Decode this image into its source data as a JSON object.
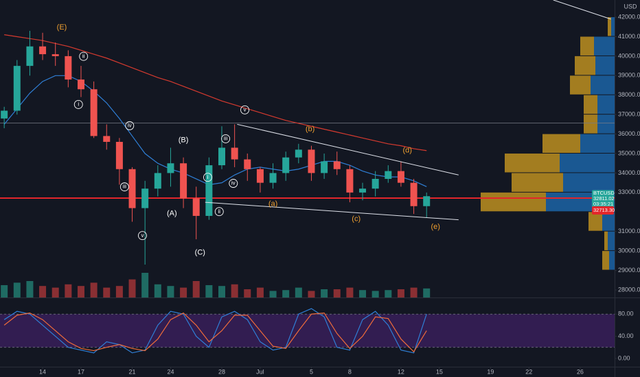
{
  "chart_data": [
    {
      "type": "candlestick",
      "currency": "USD",
      "symbol": "BTCUSD",
      "last_price": {
        "value": 32811.02,
        "label": "32811.02"
      },
      "countdown": "03:35:21",
      "ref_price": {
        "value": 32713.3,
        "label": "32713.30"
      },
      "h_level": 36570,
      "x": [
        11,
        12,
        13,
        14,
        15,
        16,
        17,
        18,
        19,
        20,
        21,
        22,
        23,
        24,
        25,
        26,
        27,
        28,
        29,
        30,
        31,
        32,
        33,
        34,
        35,
        36,
        37,
        38,
        39,
        40,
        41,
        42,
        43,
        44
      ],
      "open": [
        36800,
        37200,
        39500,
        40500,
        40100,
        40000,
        38800,
        38300,
        35900,
        35600,
        34200,
        32200,
        33200,
        34000,
        34500,
        32700,
        31800,
        34400,
        35300,
        34700,
        34200,
        33500,
        34000,
        34800,
        35200,
        34000,
        34600,
        34200,
        33000,
        33200,
        33700,
        34100,
        33500,
        32300
      ],
      "high": [
        37400,
        39800,
        41300,
        41200,
        40700,
        40300,
        39500,
        38700,
        36500,
        35800,
        34300,
        33600,
        34400,
        35300,
        34800,
        33300,
        34800,
        36400,
        36500,
        35000,
        34300,
        34500,
        35100,
        35500,
        35400,
        35000,
        35100,
        34400,
        33500,
        34100,
        34400,
        34600,
        33700,
        33000
      ],
      "low": [
        36300,
        37000,
        39000,
        39800,
        39500,
        38400,
        37900,
        35800,
        35200,
        33400,
        31500,
        29300,
        32800,
        33300,
        32200,
        30600,
        31600,
        34200,
        34300,
        33600,
        33000,
        33200,
        33600,
        34500,
        33600,
        33700,
        33900,
        32500,
        32600,
        32800,
        33500,
        33300,
        31900,
        31700
      ],
      "close": [
        37200,
        39500,
        40500,
        40100,
        40000,
        38800,
        38300,
        35900,
        35600,
        34200,
        32200,
        33200,
        34000,
        34500,
        32700,
        31800,
        34400,
        35300,
        34700,
        34200,
        33500,
        34000,
        34800,
        35200,
        34000,
        34600,
        34200,
        33000,
        33200,
        33700,
        34100,
        33500,
        32300,
        32811.02
      ],
      "volume": [
        15,
        18,
        20,
        14,
        12,
        16,
        14,
        18,
        12,
        14,
        22,
        30,
        16,
        14,
        12,
        20,
        15,
        14,
        16,
        10,
        12,
        8,
        9,
        12,
        8,
        10,
        10,
        12,
        9,
        8,
        9,
        10,
        12,
        11
      ],
      "up_color": "#26a69a",
      "down_color": "#ef5350",
      "overlays": [
        {
          "color": "#d63a2f",
          "values": [
            41100,
            41000,
            40900,
            40800,
            40650,
            40500,
            40300,
            40100,
            39900,
            39650,
            39400,
            39150,
            38900,
            38700,
            38450,
            38200,
            37950,
            37700,
            37500,
            37300,
            37100,
            36900,
            36700,
            36550,
            36400,
            36250,
            36100,
            35950,
            35800,
            35650,
            35500,
            35400,
            35250,
            35150
          ]
        },
        {
          "color": "#2f7fd6",
          "values": [
            36500,
            37300,
            38100,
            38700,
            39000,
            39000,
            38700,
            38200,
            37600,
            36800,
            35900,
            35000,
            34500,
            34200,
            34000,
            33700,
            33400,
            33500,
            33900,
            34200,
            34300,
            34200,
            34100,
            34200,
            34400,
            34600,
            34600,
            34400,
            34100,
            33900,
            33800,
            33800,
            33600,
            33300
          ]
        }
      ],
      "trendlines": [
        {
          "x": [
            29.2,
            46.5
          ],
          "y": [
            36500,
            33900
          ]
        },
        {
          "x": [
            26.7,
            46.5
          ],
          "y": [
            32500,
            31600
          ]
        },
        {
          "x": [
            53.9,
            58.4
          ],
          "y": [
            42882,
            41900
          ]
        }
      ],
      "volume_profile": {
        "bins": [
          29000,
          30000,
          31000,
          32000,
          33000,
          34000,
          35000,
          36000,
          37000,
          38000,
          39000,
          40000,
          41000,
          42000
        ],
        "up": [
          10,
          5,
          20,
          95,
          75,
          80,
          55,
          20,
          20,
          30,
          30,
          20,
          5
        ],
        "down": [
          8,
          10,
          18,
          100,
          75,
          80,
          50,
          25,
          25,
          35,
          28,
          30,
          5
        ]
      },
      "annotations": [
        {
          "text": "(E)",
          "x": 15.5,
          "y": 41470,
          "color": "#f0a030",
          "circled": false
        },
        {
          "text": "ii",
          "x": 17.2,
          "y": 39990,
          "color": "#ffffff",
          "circled": true
        },
        {
          "text": "i",
          "x": 16.8,
          "y": 37520,
          "color": "#ffffff",
          "circled": true
        },
        {
          "text": "iv",
          "x": 20.8,
          "y": 36430,
          "color": "#ffffff",
          "circled": true
        },
        {
          "text": "iii",
          "x": 20.4,
          "y": 33290,
          "color": "#ffffff",
          "circled": true
        },
        {
          "text": "v",
          "x": 21.8,
          "y": 30790,
          "color": "#ffffff",
          "circled": true
        },
        {
          "text": "(B)",
          "x": 25.0,
          "y": 35690,
          "color": "#ffffff",
          "circled": false
        },
        {
          "text": "(A)",
          "x": 24.1,
          "y": 31920,
          "color": "#ffffff",
          "circled": false
        },
        {
          "text": "(C)",
          "x": 26.3,
          "y": 29910,
          "color": "#ffffff",
          "circled": false
        },
        {
          "text": "i",
          "x": 26.9,
          "y": 33780,
          "color": "#ffffff",
          "circled": true
        },
        {
          "text": "iv",
          "x": 28.9,
          "y": 33470,
          "color": "#ffffff",
          "circled": true
        },
        {
          "text": "iii",
          "x": 28.3,
          "y": 35760,
          "color": "#ffffff",
          "circled": true
        },
        {
          "text": "ii",
          "x": 27.8,
          "y": 32020,
          "color": "#ffffff",
          "circled": true
        },
        {
          "text": "v",
          "x": 29.8,
          "y": 37240,
          "color": "#ffffff",
          "circled": true
        },
        {
          "text": "(a)",
          "x": 32.0,
          "y": 32410,
          "color": "#f0a030",
          "circled": false
        },
        {
          "text": "(b)",
          "x": 34.9,
          "y": 36250,
          "color": "#f0a030",
          "circled": false
        },
        {
          "text": "(c)",
          "x": 38.5,
          "y": 31630,
          "color": "#f0a030",
          "circled": false
        },
        {
          "text": "(d)",
          "x": 42.5,
          "y": 35160,
          "color": "#f0a030",
          "circled": false
        },
        {
          "text": "(e)",
          "x": 44.7,
          "y": 31240,
          "color": "#f0a030",
          "circled": false
        }
      ],
      "xlim": [
        10.67,
        58.69
      ],
      "xticks": [
        {
          "value": 14,
          "label": "14"
        },
        {
          "value": 17,
          "label": "17"
        },
        {
          "value": 21,
          "label": "21"
        },
        {
          "value": 24,
          "label": "24"
        },
        {
          "value": 28,
          "label": "28"
        },
        {
          "value": 31,
          "label": "Jul"
        },
        {
          "value": 35,
          "label": "5"
        },
        {
          "value": 38,
          "label": "8"
        },
        {
          "value": 42,
          "label": "12"
        },
        {
          "value": 45,
          "label": "15"
        },
        {
          "value": 49,
          "label": "19"
        },
        {
          "value": 52,
          "label": "22"
        },
        {
          "value": 56,
          "label": "26"
        }
      ],
      "ylim": [
        27612,
        42882
      ],
      "yticks": [
        {
          "value": 28000,
          "label": "28000.00"
        },
        {
          "value": 29000,
          "label": "29000.00"
        },
        {
          "value": 30000,
          "label": "30000.00"
        },
        {
          "value": 31000,
          "label": "31000.00"
        },
        {
          "value": 33000,
          "label": "33000.00"
        },
        {
          "value": 34000,
          "label": "34000.00"
        },
        {
          "value": 35000,
          "label": "35000.00"
        },
        {
          "value": 36000,
          "label": "36000.00"
        },
        {
          "value": 37000,
          "label": "37000.00"
        },
        {
          "value": 38000,
          "label": "38000.00"
        },
        {
          "value": 39000,
          "label": "39000.00"
        },
        {
          "value": 40000,
          "label": "40000.00"
        },
        {
          "value": 41000,
          "label": "41000.00"
        },
        {
          "value": 42000,
          "label": "42000.00"
        }
      ]
    },
    {
      "type": "line",
      "band": [
        20,
        80
      ],
      "band_color": "#3b1f5e",
      "series": [
        {
          "color": "#2f7fd6",
          "values": [
            70,
            85,
            80,
            60,
            40,
            20,
            15,
            10,
            30,
            25,
            10,
            15,
            60,
            85,
            80,
            40,
            20,
            75,
            85,
            70,
            30,
            15,
            20,
            80,
            90,
            75,
            20,
            15,
            70,
            85,
            60,
            15,
            10,
            80
          ]
        },
        {
          "color": "#ef6c3a",
          "values": [
            60,
            78,
            82,
            70,
            50,
            30,
            18,
            14,
            20,
            25,
            18,
            14,
            35,
            70,
            82,
            60,
            30,
            50,
            78,
            78,
            50,
            22,
            18,
            50,
            80,
            82,
            45,
            18,
            40,
            75,
            72,
            35,
            12,
            50
          ]
        }
      ],
      "ylim": [
        -15,
        108.75
      ],
      "yticks": [
        {
          "value": 0,
          "label": "0.00"
        },
        {
          "value": 40,
          "label": "40.00"
        },
        {
          "value": 80,
          "label": "80.00"
        }
      ]
    }
  ]
}
